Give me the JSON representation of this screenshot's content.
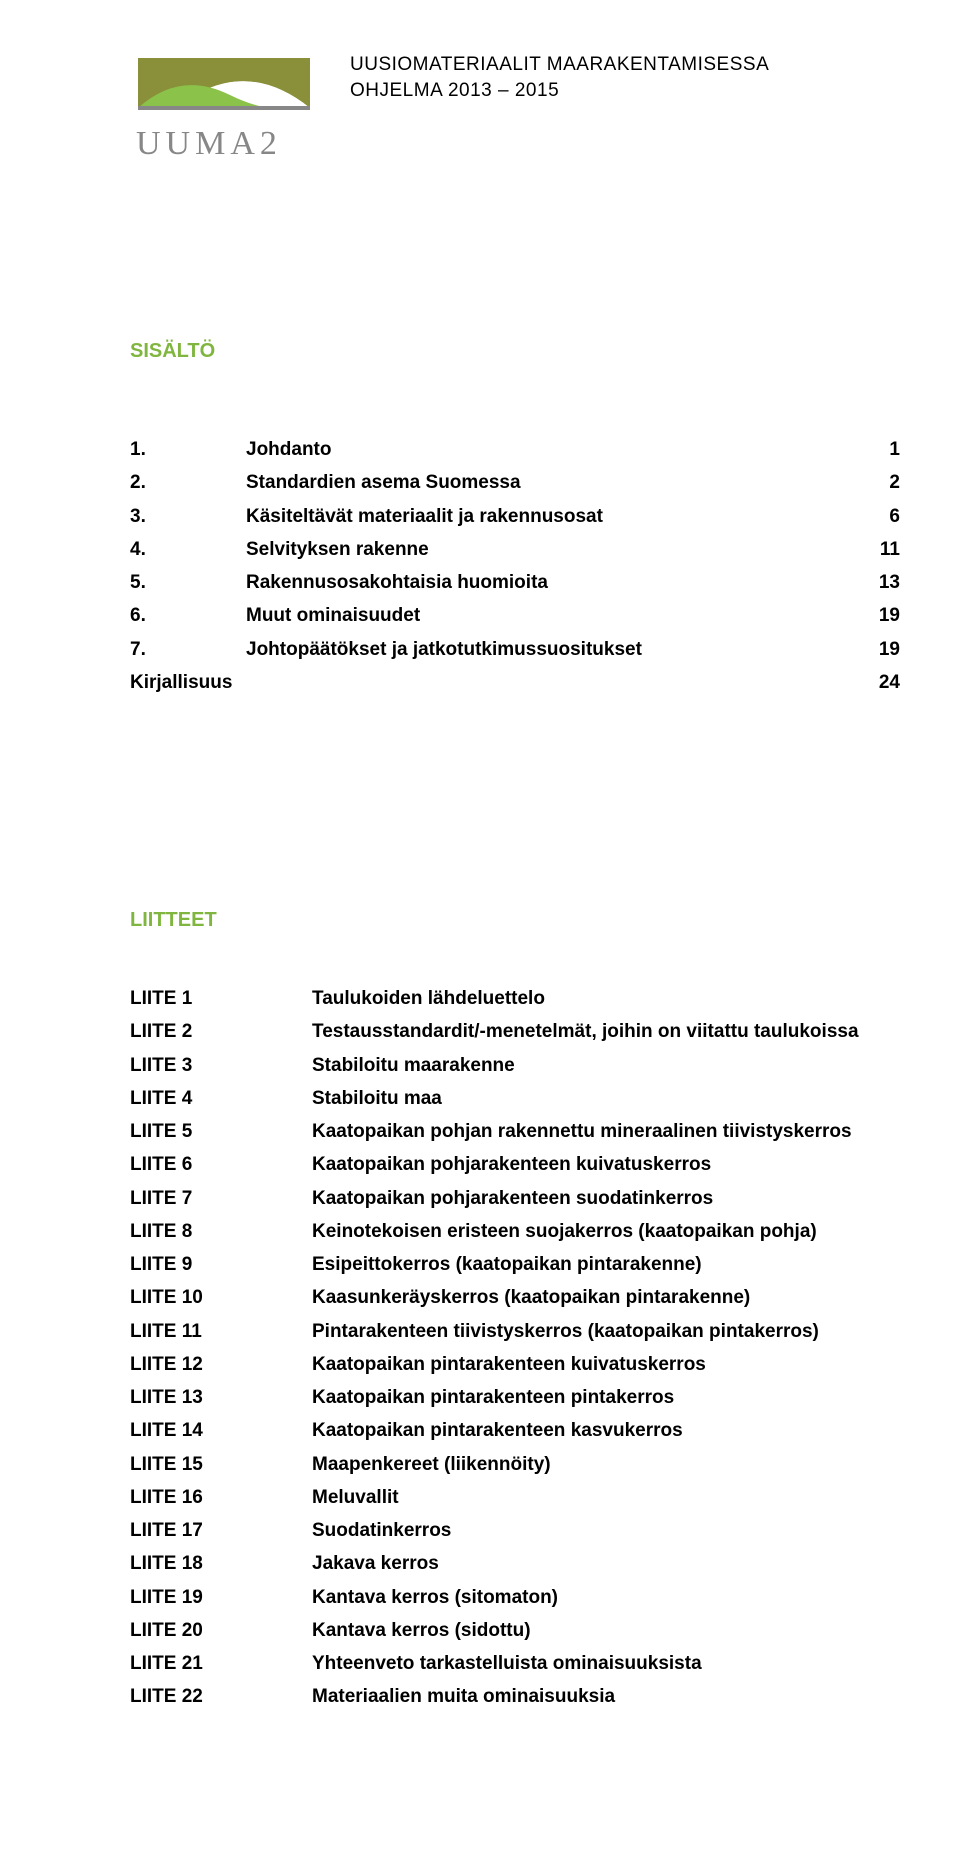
{
  "colors": {
    "accent_green": "#80b640",
    "accent_olive": "#8a8f3a",
    "logo_gray": "#878787",
    "text": "#000000",
    "background": "#ffffff"
  },
  "typography": {
    "body_fontsize_pt": 14,
    "title_fontsize_pt": 15,
    "font_family": "Verdana"
  },
  "header": {
    "line1": "UUSIOMATERIAALIT MAARAKENTAMISESSA",
    "line2": "OHJELMA 2013 – 2015",
    "logo_text": "UUMA2"
  },
  "sisalto": {
    "title": "SISÄLTÖ",
    "items": [
      {
        "num": "1.",
        "label": "Johdanto",
        "page": "1"
      },
      {
        "num": "2.",
        "label": "Standardien asema Suomessa",
        "page": "2"
      },
      {
        "num": "3.",
        "label": "Käsiteltävät materiaalit ja rakennusosat",
        "page": "6"
      },
      {
        "num": "4.",
        "label": "Selvityksen rakenne",
        "page": "11"
      },
      {
        "num": "5.",
        "label": "Rakennusosakohtaisia huomioita",
        "page": "13"
      },
      {
        "num": "6.",
        "label": "Muut ominaisuudet",
        "page": "19"
      },
      {
        "num": "7.",
        "label": "Johtopäätökset ja jatkotutkimussuositukset",
        "page": "19"
      }
    ],
    "tail": {
      "label": "Kirjallisuus",
      "page": "24"
    }
  },
  "liitteet": {
    "title": "LIITTEET",
    "items": [
      {
        "key": "LIITE 1",
        "val": "Taulukoiden lähdeluettelo"
      },
      {
        "key": "LIITE 2",
        "val": "Testausstandardit/-menetelmät, joihin on viitattu taulukoissa"
      },
      {
        "key": "LIITE 3",
        "val": "Stabiloitu maarakenne"
      },
      {
        "key": "LIITE 4",
        "val": "Stabiloitu maa"
      },
      {
        "key": "LIITE 5",
        "val": "Kaatopaikan pohjan rakennettu mineraalinen tiivistyskerros"
      },
      {
        "key": "LIITE 6",
        "val": "Kaatopaikan pohjarakenteen kuivatuskerros"
      },
      {
        "key": "LIITE 7",
        "val": "Kaatopaikan pohjarakenteen suodatinkerros"
      },
      {
        "key": "LIITE 8",
        "val": "Keinotekoisen eristeen suojakerros (kaatopaikan pohja)"
      },
      {
        "key": "LIITE 9",
        "val": "Esipeittokerros (kaatopaikan pintarakenne)"
      },
      {
        "key": "LIITE 10",
        "val": "Kaasunkeräyskerros (kaatopaikan pintarakenne)"
      },
      {
        "key": "LIITE 11",
        "val": "Pintarakenteen tiivistyskerros (kaatopaikan pintakerros)"
      },
      {
        "key": "LIITE 12",
        "val": "Kaatopaikan pintarakenteen kuivatuskerros"
      },
      {
        "key": "LIITE 13",
        "val": "Kaatopaikan pintarakenteen pintakerros"
      },
      {
        "key": "LIITE 14",
        "val": "Kaatopaikan pintarakenteen kasvukerros"
      },
      {
        "key": "LIITE 15",
        "val": "Maapenkereet (liikennöity)"
      },
      {
        "key": "LIITE 16",
        "val": "Meluvallit"
      },
      {
        "key": "LIITE 17",
        "val": "Suodatinkerros"
      },
      {
        "key": "LIITE 18",
        "val": "Jakava kerros"
      },
      {
        "key": "LIITE 19",
        "val": "Kantava kerros (sitomaton)"
      },
      {
        "key": "LIITE 20",
        "val": "Kantava kerros (sidottu)"
      },
      {
        "key": "LIITE 21",
        "val": "Yhteenveto tarkastelluista ominaisuuksista"
      },
      {
        "key": "LIITE 22",
        "val": "Materiaalien muita ominaisuuksia"
      }
    ]
  }
}
